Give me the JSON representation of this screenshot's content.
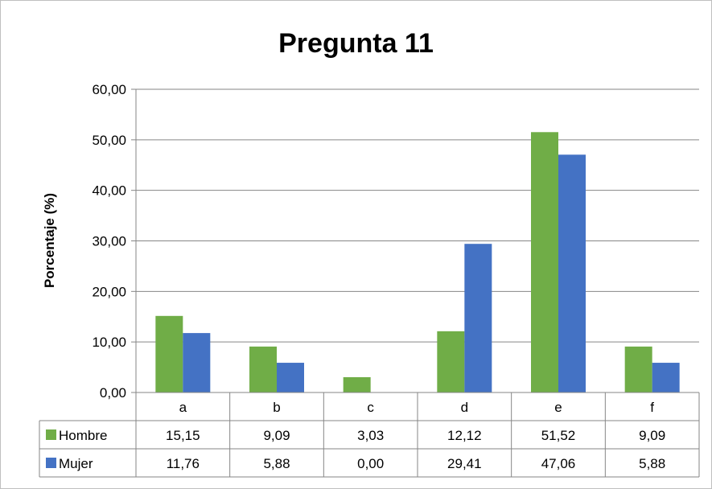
{
  "chart_data": {
    "type": "bar",
    "title": "Pregunta 11",
    "xlabel": "",
    "ylabel": "Porcentaje (%)",
    "ylim": [
      0,
      60
    ],
    "yticks": [
      "0,00",
      "10,00",
      "20,00",
      "30,00",
      "40,00",
      "50,00",
      "60,00"
    ],
    "grid": true,
    "legend": "data-table",
    "categories": [
      "a",
      "b",
      "c",
      "d",
      "e",
      "f"
    ],
    "series": [
      {
        "name": "Hombre",
        "color": "#70ad47",
        "values": [
          15.15,
          9.09,
          3.03,
          12.12,
          51.52,
          9.09
        ],
        "labels": [
          "15,15",
          "9,09",
          "3,03",
          "12,12",
          "51,52",
          "9,09"
        ]
      },
      {
        "name": "Mujer",
        "color": "#4472c4",
        "values": [
          11.76,
          5.88,
          0.0,
          29.41,
          47.06,
          5.88
        ],
        "labels": [
          "11,76",
          "5,88",
          "0,00",
          "29,41",
          "47,06",
          "5,88"
        ]
      }
    ]
  }
}
